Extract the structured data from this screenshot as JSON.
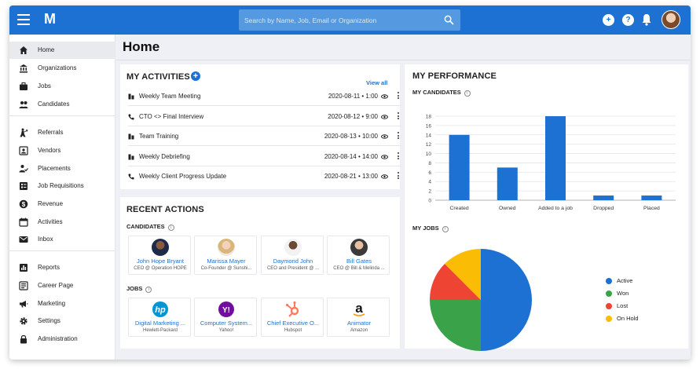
{
  "app": {
    "logo": "M",
    "search_placeholder": "Search by Name, Job, Email or Organization",
    "help_icon": "?",
    "add_icon": "+"
  },
  "sidebar": {
    "groups": [
      [
        {
          "label": "Home",
          "icon": "home-icon",
          "active": true
        },
        {
          "label": "Organizations",
          "icon": "bank-icon"
        },
        {
          "label": "Jobs",
          "icon": "briefcase-icon"
        },
        {
          "label": "Candidates",
          "icon": "people-icon"
        }
      ],
      [
        {
          "label": "Referrals",
          "icon": "referral-icon"
        },
        {
          "label": "Vendors",
          "icon": "vendor-icon"
        },
        {
          "label": "Placements",
          "icon": "placement-icon"
        },
        {
          "label": "Job Requisitions",
          "icon": "requisition-icon"
        },
        {
          "label": "Revenue",
          "icon": "dollar-icon"
        },
        {
          "label": "Activities",
          "icon": "calendar-icon"
        },
        {
          "label": "Inbox",
          "icon": "mail-icon"
        }
      ],
      [
        {
          "label": "Reports",
          "icon": "report-icon"
        },
        {
          "label": "Career Page",
          "icon": "career-page-icon"
        },
        {
          "label": "Marketing",
          "icon": "megaphone-icon"
        },
        {
          "label": "Settings",
          "icon": "gear-icon"
        },
        {
          "label": "Administration",
          "icon": "lock-icon"
        }
      ]
    ]
  },
  "page": {
    "title": "Home"
  },
  "activities": {
    "title": "MY ACTIVITIES",
    "view_all": "View all",
    "items": [
      {
        "label": "Weekly Team Meeting",
        "date": "2020-08-11 • 1:00",
        "icon": "meeting-icon"
      },
      {
        "label": "CTO <> Final Interview",
        "date": "2020-08-12 • 9:00",
        "icon": "phone-icon"
      },
      {
        "label": "Team Training",
        "date": "2020-08-13 • 10:00",
        "icon": "meeting-icon"
      },
      {
        "label": "Weekly Debriefing",
        "date": "2020-08-14 • 14:00",
        "icon": "meeting-icon"
      },
      {
        "label": "Weekly Client Progress Update",
        "date": "2020-08-21 • 13:00",
        "icon": "phone-icon"
      }
    ]
  },
  "recent": {
    "title": "RECENT ACTIONS",
    "candidates_label": "CANDIDATES",
    "jobs_label": "JOBS",
    "candidates": [
      {
        "name": "John Hope Bryant",
        "sub": "CEO @ Operation HOPE"
      },
      {
        "name": "Marissa Mayer",
        "sub": "Co-Founder @ Sunshi..."
      },
      {
        "name": "Daymond John",
        "sub": "CEO and President @ ..."
      },
      {
        "name": "Bill Gates",
        "sub": "CEO @ Bill & Melinda ..."
      }
    ],
    "jobs": [
      {
        "name": "Digital Marketing ...",
        "sub": "Hewlett-Packard",
        "logo_text": "hp",
        "color": "#0096d6"
      },
      {
        "name": "Computer System...",
        "sub": "Yahoo!",
        "logo_text": "Y!",
        "color": "#720e9e"
      },
      {
        "name": "Chief Executive O...",
        "sub": "Hubspot",
        "logo_text": "",
        "color": "#ff7a59"
      },
      {
        "name": "Animator",
        "sub": "Amazon",
        "logo_text": "a",
        "color": "#111111"
      }
    ]
  },
  "performance": {
    "title": "MY PERFORMANCE",
    "candidates_label": "MY CANDIDATES",
    "jobs_label": "MY JOBS"
  },
  "chart_data": [
    {
      "type": "bar",
      "title": "MY CANDIDATES",
      "categories": [
        "Created",
        "Owned",
        "Added to a job",
        "Dropped",
        "Placed"
      ],
      "values": [
        14,
        7,
        18,
        1,
        1
      ],
      "ylim": [
        0,
        18
      ],
      "yticks": [
        0,
        2,
        4,
        6,
        8,
        10,
        12,
        14,
        16,
        18
      ],
      "grid": true,
      "color": "#1c71d2"
    },
    {
      "type": "pie",
      "title": "MY JOBS",
      "labels": [
        "Active",
        "Won",
        "Lost",
        "On Hold"
      ],
      "values": [
        50,
        25,
        12.5,
        12.5
      ],
      "colors": [
        "#1c71d2",
        "#3aa34a",
        "#ee4433",
        "#fbbc05"
      ],
      "legend": "right"
    }
  ]
}
